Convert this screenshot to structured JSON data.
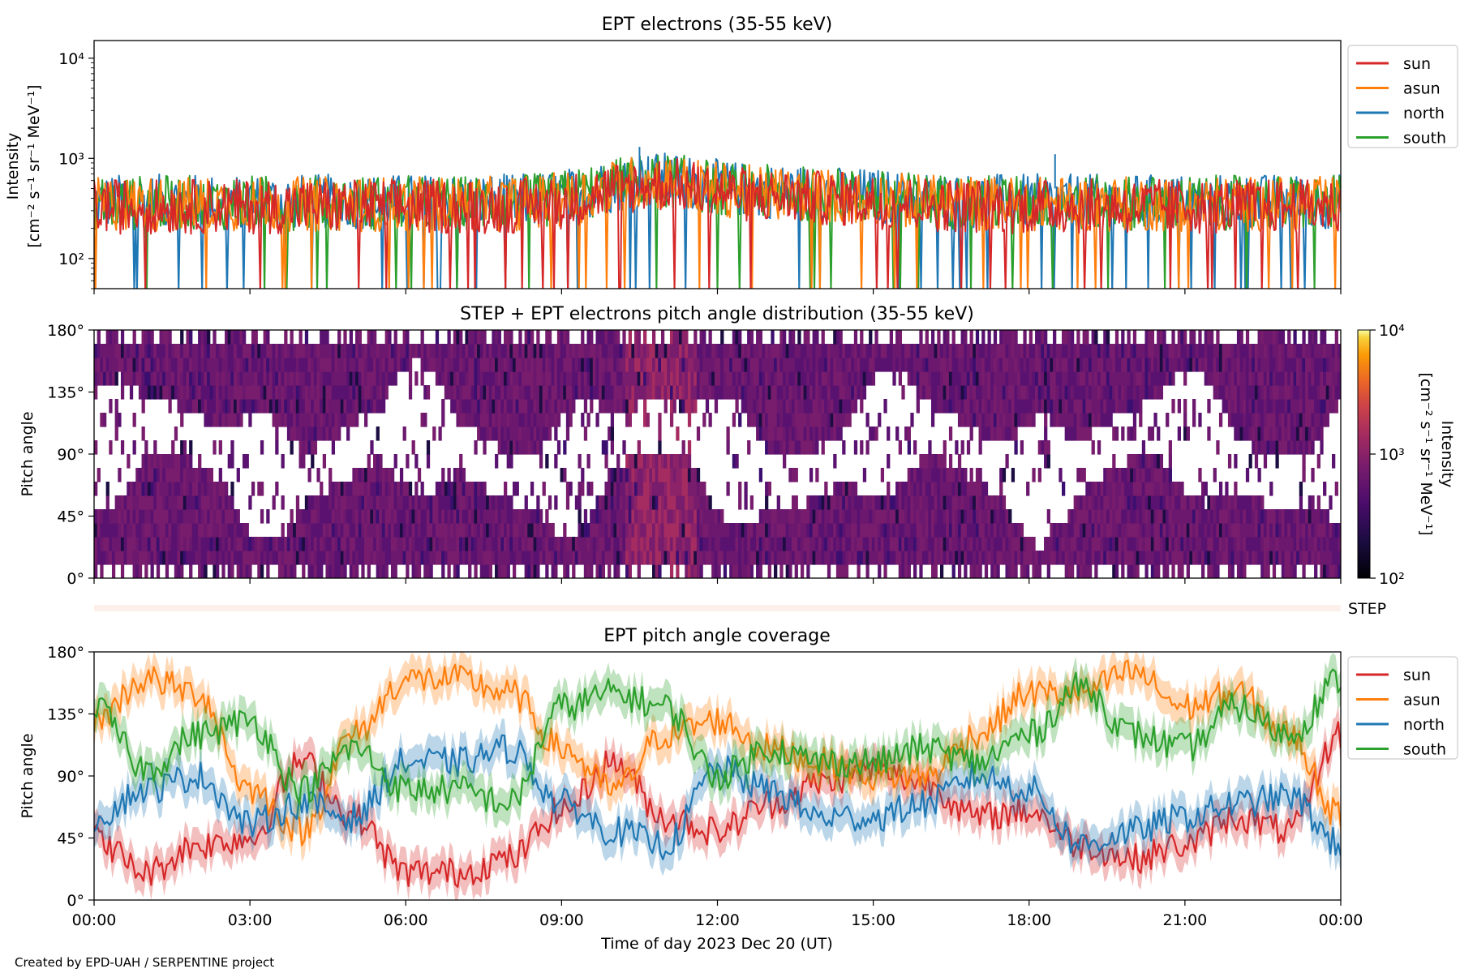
{
  "chart_data": [
    {
      "type": "line",
      "title": "EPT electrons (35-55 keV)",
      "ylabel_line1": "Intensity",
      "ylabel_line2": "[cm⁻² s⁻¹ sr⁻¹ MeV⁻¹]",
      "yscale": "log",
      "ylim": [
        50,
        15000
      ],
      "yticks": [
        {
          "v": 100,
          "label": "10²"
        },
        {
          "v": 1000,
          "label": "10³"
        },
        {
          "v": 10000,
          "label": "10⁴"
        }
      ],
      "x_range_hours": [
        0,
        24
      ],
      "legend_position": "outside-right-top",
      "series": [
        {
          "name": "sun",
          "color": "#d62728",
          "typical_value": 330
        },
        {
          "name": "asun",
          "color": "#ff7f0e",
          "typical_value": 350
        },
        {
          "name": "north",
          "color": "#1f77b4",
          "typical_value": 370
        },
        {
          "name": "south",
          "color": "#2ca02c",
          "typical_value": 360
        }
      ],
      "notes": [
        {
          "x_hours": 10.5,
          "value": 1300
        },
        {
          "x_hours": 18.5,
          "value": 1100
        }
      ]
    },
    {
      "type": "heatmap",
      "title": "STEP + EPT electrons pitch angle distribution (35-55 keV)",
      "ylabel": "Pitch angle",
      "ylim": [
        0,
        180
      ],
      "yticks": [
        {
          "v": 0,
          "label": "0°"
        },
        {
          "v": 45,
          "label": "45°"
        },
        {
          "v": 90,
          "label": "90°"
        },
        {
          "v": 135,
          "label": "135°"
        },
        {
          "v": 180,
          "label": "180°"
        }
      ],
      "colorbar": {
        "label": "Intensity",
        "unit": "[cm⁻² s⁻¹ sr⁻¹ MeV⁻¹]",
        "scale": "log",
        "range": [
          100,
          10000
        ],
        "ticks": [
          {
            "v": 100,
            "label": "10²"
          },
          {
            "v": 1000,
            "label": "10³"
          },
          {
            "v": 10000,
            "label": "10⁴"
          }
        ],
        "colormap": "inferno"
      },
      "typical_value": 250
    },
    {
      "type": "bar",
      "label": "STEP",
      "color": "#fdf0eb"
    },
    {
      "type": "line",
      "title": "EPT pitch angle coverage",
      "ylabel": "Pitch angle",
      "ylim": [
        0,
        180
      ],
      "yticks": [
        {
          "v": 0,
          "label": "0°"
        },
        {
          "v": 45,
          "label": "45°"
        },
        {
          "v": 90,
          "label": "90°"
        },
        {
          "v": 135,
          "label": "135°"
        },
        {
          "v": 180,
          "label": "180°"
        }
      ],
      "xlabel": "Time of day 2023 Dec 20 (UT)",
      "xticks": [
        {
          "h": 0,
          "label": "00:00"
        },
        {
          "h": 3,
          "label": "03:00"
        },
        {
          "h": 6,
          "label": "06:00"
        },
        {
          "h": 9,
          "label": "09:00"
        },
        {
          "h": 12,
          "label": "12:00"
        },
        {
          "h": 15,
          "label": "15:00"
        },
        {
          "h": 18,
          "label": "18:00"
        },
        {
          "h": 21,
          "label": "21:00"
        },
        {
          "h": 24,
          "label": "00:00"
        }
      ],
      "legend_position": "outside-right-top",
      "series": [
        {
          "name": "sun",
          "color": "#d62728",
          "x_hours": [
            0,
            1,
            2,
            3,
            4,
            5,
            6,
            7,
            8,
            9,
            10,
            11,
            12,
            13,
            14,
            15,
            16,
            17,
            18,
            19,
            20,
            21,
            22,
            23,
            24
          ],
          "pitch_angle": [
            45,
            20,
            40,
            45,
            100,
            60,
            20,
            20,
            30,
            65,
            100,
            60,
            50,
            70,
            85,
            95,
            85,
            60,
            65,
            40,
            30,
            40,
            60,
            50,
            120
          ]
        },
        {
          "name": "asun",
          "color": "#ff7f0e",
          "x_hours": [
            0,
            1,
            2,
            3,
            4,
            5,
            6,
            7,
            8,
            9,
            10,
            11,
            12,
            13,
            14,
            15,
            16,
            17,
            18,
            19,
            20,
            21,
            22,
            23,
            24
          ],
          "pitch_angle": [
            130,
            160,
            150,
            80,
            50,
            120,
            160,
            160,
            150,
            110,
            80,
            120,
            130,
            110,
            100,
            90,
            90,
            120,
            150,
            150,
            165,
            140,
            150,
            120,
            60
          ]
        },
        {
          "name": "north",
          "color": "#1f77b4",
          "x_hours": [
            0,
            1,
            2,
            3,
            4,
            5,
            6,
            7,
            8,
            9,
            10,
            11,
            12,
            13,
            14,
            15,
            16,
            17,
            18,
            19,
            20,
            21,
            22,
            23,
            24
          ],
          "pitch_angle": [
            60,
            80,
            90,
            55,
            70,
            60,
            100,
            100,
            110,
            70,
            50,
            40,
            95,
            80,
            60,
            60,
            70,
            90,
            80,
            40,
            50,
            60,
            70,
            75,
            40
          ]
        },
        {
          "name": "south",
          "color": "#2ca02c",
          "x_hours": [
            0,
            1,
            2,
            3,
            4,
            5,
            6,
            7,
            8,
            9,
            10,
            11,
            12,
            13,
            14,
            15,
            16,
            17,
            18,
            19,
            20,
            21,
            22,
            23,
            24
          ],
          "pitch_angle": [
            140,
            95,
            120,
            130,
            80,
            110,
            80,
            80,
            70,
            140,
            150,
            140,
            90,
            110,
            100,
            100,
            110,
            100,
            120,
            155,
            120,
            110,
            140,
            120,
            160
          ]
        }
      ]
    }
  ],
  "footer": "Created by EPD-UAH / SERPENTINE project"
}
